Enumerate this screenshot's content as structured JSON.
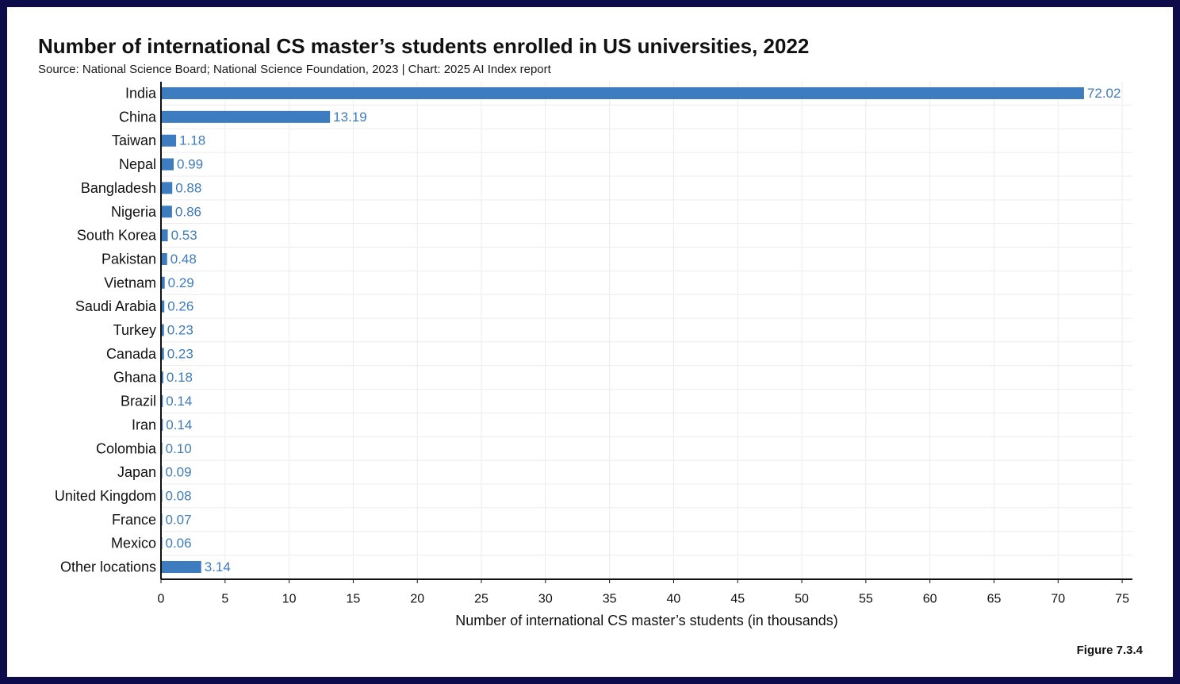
{
  "title": "Number of international CS master’s students enrolled in US universities, 2022",
  "subtitle": "Source: National Science Board; National Science Foundation, 2023 | Chart: 2025 AI Index report",
  "figure_label": "Figure 7.3.4",
  "colors": {
    "bar": "#3e7cc0",
    "value_label": "#3e7cc0",
    "border": "#0e0b4a",
    "grid": "#ececec"
  },
  "chart_data": {
    "type": "bar",
    "orientation": "horizontal",
    "categories": [
      "India",
      "China",
      "Taiwan",
      "Nepal",
      "Bangladesh",
      "Nigeria",
      "South Korea",
      "Pakistan",
      "Vietnam",
      "Saudi Arabia",
      "Turkey",
      "Canada",
      "Ghana",
      "Brazil",
      "Iran",
      "Colombia",
      "Japan",
      "United Kingdom",
      "France",
      "Mexico",
      "Other locations"
    ],
    "values": [
      72.02,
      13.19,
      1.18,
      0.99,
      0.88,
      0.86,
      0.53,
      0.48,
      0.29,
      0.26,
      0.23,
      0.23,
      0.18,
      0.14,
      0.14,
      0.1,
      0.09,
      0.08,
      0.07,
      0.06,
      3.14
    ],
    "value_labels": [
      "72.02",
      "13.19",
      "1.18",
      "0.99",
      "0.88",
      "0.86",
      "0.53",
      "0.48",
      "0.29",
      "0.26",
      "0.23",
      "0.23",
      "0.18",
      "0.14",
      "0.14",
      "0.10",
      "0.09",
      "0.08",
      "0.07",
      "0.06",
      "3.14"
    ],
    "xlabel": "Number of international CS master’s students (in thousands)",
    "ylabel": "",
    "xlim": [
      0,
      75.8
    ],
    "xticks": [
      0,
      5,
      10,
      15,
      20,
      25,
      30,
      35,
      40,
      45,
      50,
      55,
      60,
      65,
      70,
      75
    ],
    "grid": true,
    "legend": "none"
  }
}
